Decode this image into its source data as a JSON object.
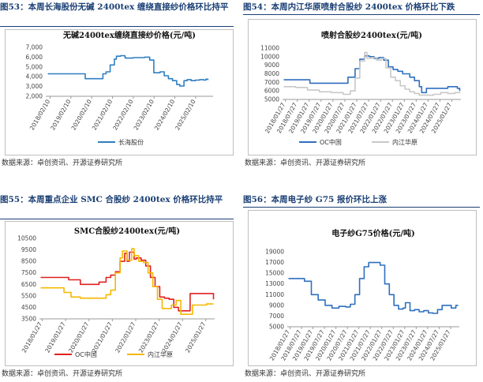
{
  "panels": [
    {
      "figure_title": "图53：本周长海股份无碱 2400tex 缠绕直接纱价格环比持平",
      "source": "数据来源：卓创资讯、开源证券研究所",
      "chart_data": {
        "type": "line",
        "title": "无碱2400tex缠绕直接纱价格(元/吨)",
        "ylim": [
          2000,
          7000
        ],
        "yticks": [
          2000,
          3000,
          4000,
          5000,
          6000,
          7000
        ],
        "ytick_labels": [
          "2,000",
          "3,000",
          "4,000",
          "5,000",
          "6,000",
          "7,000"
        ],
        "xlim": [
          2017.9,
          2025.95
        ],
        "xticks": [
          2018.11,
          2019.11,
          2020.11,
          2021.11,
          2022.11,
          2023.11,
          2024.11,
          2025.11
        ],
        "xtick_labels": [
          "2018/02/10",
          "2019/02/10",
          "2020/02/10",
          "2021/02/10",
          "2022/02/10",
          "2023/02/10",
          "2024/02/10",
          "2025/02/10"
        ],
        "legend_position": "bottom",
        "series": [
          {
            "name": "长海股份",
            "color": "#2f7fc1",
            "x": [
              2018.0,
              2019.0,
              2019.75,
              2019.8,
              2020.3,
              2020.6,
              2020.65,
              2020.8,
              2021.0,
              2021.2,
              2021.3,
              2021.5,
              2021.7,
              2021.72,
              2022.1,
              2022.5,
              2022.65,
              2022.9,
              2023.1,
              2023.4,
              2023.6,
              2023.8,
              2024.0,
              2024.2,
              2024.35,
              2024.5,
              2024.55,
              2024.7,
              2024.9,
              2025.1,
              2025.3,
              2025.5,
              2025.6,
              2025.7
            ],
            "y": [
              4300,
              4300,
              4300,
              3800,
              3800,
              3800,
              4300,
              4500,
              5200,
              5800,
              6100,
              6150,
              6100,
              5900,
              5950,
              5950,
              6000,
              5700,
              4400,
              4500,
              4100,
              3800,
              3600,
              3200,
              3050,
              3050,
              3600,
              3700,
              3600,
              3650,
              3700,
              3650,
              3750,
              3650
            ]
          }
        ]
      }
    },
    {
      "figure_title": "图54：本周内江华原喷射合股纱 2400tex 价格环比下跌",
      "source": "数据来源：卓创资讯、开源证券研究所",
      "chart_data": {
        "type": "line",
        "title": "喷射合股纱2400tex(元/吨)",
        "ylim": [
          5000,
          11000
        ],
        "yticks": [
          5000,
          6000,
          7000,
          8000,
          9000,
          10000,
          11000
        ],
        "ytick_labels": [
          "5000",
          "6000",
          "7000",
          "8000",
          "9000",
          "10000",
          "11000"
        ],
        "xlim": [
          2017.95,
          2025.45
        ],
        "xticks": [
          2018.07,
          2018.57,
          2019.07,
          2019.57,
          2020.07,
          2020.57,
          2021.07,
          2021.57,
          2022.07,
          2022.57,
          2023.07,
          2023.57,
          2024.07,
          2024.57,
          2025.07
        ],
        "xtick_labels": [
          "2018/01/27",
          "2018/07/27",
          "2019/01/27",
          "2019/07/27",
          "2020/01/27",
          "2020/07/27",
          "2021/01/27",
          "2021/07/27",
          "2022/01/27",
          "2022/07/27",
          "2023/01/27",
          "2023/07/27",
          "2024/01/27",
          "2024/07/27",
          "2025/01/27"
        ],
        "legend_position": "bottom",
        "series": [
          {
            "name": "OC中国",
            "color": "#2f6fbf",
            "x": [
              2018.0,
              2019.0,
              2019.1,
              2020.5,
              2020.7,
              2021.0,
              2021.2,
              2021.4,
              2021.6,
              2021.8,
              2022.0,
              2022.2,
              2022.4,
              2022.6,
              2022.8,
              2023.0,
              2023.3,
              2023.5,
              2023.7,
              2023.8,
              2024.0,
              2024.3,
              2024.6,
              2024.9,
              2025.2,
              2025.3,
              2025.4
            ],
            "y": [
              7300,
              7300,
              6900,
              6900,
              7600,
              8600,
              9700,
              10100,
              10000,
              9800,
              9900,
              9600,
              8800,
              8500,
              8300,
              8000,
              7600,
              7200,
              6500,
              5800,
              6300,
              6300,
              6300,
              6500,
              6500,
              6300,
              6000
            ]
          },
          {
            "name": "内江华原",
            "color": "#c8c8c8",
            "x": [
              2018.0,
              2018.5,
              2019.0,
              2019.5,
              2020.0,
              2020.5,
              2020.8,
              2021.0,
              2021.2,
              2021.4,
              2021.5,
              2021.7,
              2021.9,
              2022.1,
              2022.3,
              2022.5,
              2022.7,
              2022.9,
              2023.1,
              2023.3,
              2023.5,
              2023.7,
              2024.0,
              2024.3,
              2024.6,
              2024.9,
              2025.2,
              2025.4
            ],
            "y": [
              6500,
              6400,
              6100,
              5900,
              5800,
              5600,
              6000,
              7500,
              9500,
              10500,
              9800,
              9900,
              9600,
              9800,
              8700,
              7600,
              7200,
              6600,
              6200,
              5900,
              5700,
              5500,
              5500,
              5600,
              5800,
              5700,
              5800,
              5900
            ]
          }
        ]
      }
    },
    {
      "figure_title": "图55：本周重点企业 SMC 合股纱 2400tex 价格环比持平",
      "source": "数据来源：卓创资讯、开源证券研究所",
      "chart_data": {
        "type": "line",
        "title": "SMC合股纱2400tex(元/吨)",
        "ylim": [
          3500,
          10500
        ],
        "yticks": [
          3500,
          4500,
          5500,
          6500,
          7500,
          8500,
          9500,
          10500
        ],
        "ytick_labels": [
          "3500",
          "4500",
          "5500",
          "6500",
          "7500",
          "8500",
          "9500",
          "10500"
        ],
        "xlim": [
          2017.95,
          2025.45
        ],
        "xticks": [
          2018.07,
          2019.07,
          2020.07,
          2021.07,
          2022.07,
          2023.07,
          2024.07,
          2025.07
        ],
        "xtick_labels": [
          "2018/01/27",
          "2019/01/27",
          "2020/01/27",
          "2021/01/27",
          "2022/01/27",
          "2023/01/27",
          "2024/01/27",
          "2025/01/27"
        ],
        "legend_position": "bottom",
        "series": [
          {
            "name": "OC中国",
            "color": "#e02020",
            "x": [
              2018.0,
              2019.0,
              2019.2,
              2019.7,
              2020.0,
              2020.5,
              2020.8,
              2021.0,
              2021.2,
              2021.4,
              2021.6,
              2021.7,
              2021.8,
              2022.0,
              2022.1,
              2022.3,
              2022.5,
              2022.7,
              2022.9,
              2023.1,
              2023.3,
              2023.5,
              2023.7,
              2023.9,
              2024.0,
              2024.3,
              2024.4,
              2024.6,
              2024.8,
              2025.0,
              2025.2,
              2025.4
            ],
            "y": [
              7100,
              7100,
              6900,
              6500,
              6500,
              6700,
              7100,
              7300,
              7600,
              8500,
              9200,
              8500,
              9300,
              8700,
              8800,
              8600,
              8100,
              7100,
              6300,
              5400,
              5300,
              5200,
              4500,
              4200,
              4200,
              4200,
              5700,
              5700,
              5700,
              5700,
              5700,
              5200
            ]
          },
          {
            "name": "内江华原",
            "color": "#f5b800",
            "x": [
              2018.0,
              2018.5,
              2019.0,
              2019.3,
              2019.7,
              2020.0,
              2020.5,
              2020.8,
              2021.0,
              2021.2,
              2021.4,
              2021.5,
              2021.7,
              2021.9,
              2022.0,
              2022.2,
              2022.4,
              2022.6,
              2022.8,
              2023.0,
              2023.2,
              2023.4,
              2023.6,
              2023.8,
              2024.0,
              2024.2,
              2024.5,
              2024.8,
              2025.1,
              2025.4
            ],
            "y": [
              6200,
              6200,
              5800,
              5400,
              5300,
              5300,
              5300,
              5600,
              6000,
              7500,
              8800,
              9400,
              8600,
              9600,
              9000,
              8500,
              8400,
              7500,
              6300,
              5200,
              4400,
              4400,
              4700,
              5100,
              3900,
              3900,
              4700,
              4700,
              4800,
              4800
            ]
          }
        ]
      }
    },
    {
      "figure_title": "图56：本周电子纱 G75 报价环比上涨",
      "source": "数据来源：卓创资讯、开源证券研究所",
      "chart_data": {
        "type": "line",
        "title": "电子纱G75价格(元/吨)",
        "ylim": [
          5000,
          19000
        ],
        "yticks": [
          5000,
          7000,
          9000,
          11000,
          13000,
          15000,
          17000,
          19000
        ],
        "ytick_labels": [
          "5000",
          "7000",
          "9000",
          "11000",
          "13000",
          "15000",
          "17000",
          "19000"
        ],
        "xlim": [
          2017.95,
          2025.45
        ],
        "xticks": [
          2018.07,
          2018.57,
          2019.07,
          2019.57,
          2020.07,
          2020.57,
          2021.07,
          2021.57,
          2022.07,
          2022.57,
          2023.07,
          2023.57,
          2024.07,
          2024.57,
          2025.07
        ],
        "xtick_labels": [
          "2018/01/27",
          "2018/07/27",
          "2019/01/27",
          "2019/07/27",
          "2020/01/27",
          "2020/07/27",
          "2021/01/27",
          "2021/07/27",
          "2022/01/27",
          "2022/07/27",
          "2023/01/27",
          "2023/07/27",
          "2024/01/27",
          "2024/07/27",
          "2025/01/27"
        ],
        "legend_position": "none",
        "series": [
          {
            "name": "",
            "color": "#2f6fbf",
            "x": [
              2018.0,
              2018.5,
              2018.7,
              2019.0,
              2019.3,
              2019.6,
              2019.9,
              2020.2,
              2020.5,
              2020.7,
              2020.9,
              2021.1,
              2021.3,
              2021.5,
              2021.6,
              2021.8,
              2022.0,
              2022.2,
              2022.4,
              2022.6,
              2022.8,
              2023.0,
              2023.1,
              2023.3,
              2023.5,
              2023.7,
              2023.9,
              2024.1,
              2024.3,
              2024.5,
              2024.7,
              2024.9,
              2025.1,
              2025.3,
              2025.4
            ],
            "y": [
              14000,
              14000,
              13500,
              11000,
              10000,
              9000,
              8500,
              8800,
              8700,
              9200,
              11000,
              14000,
              16200,
              17000,
              17000,
              17000,
              16500,
              13000,
              11000,
              9000,
              8300,
              8500,
              9500,
              8000,
              8200,
              7800,
              8000,
              7600,
              7500,
              8200,
              9000,
              9000,
              8500,
              9000,
              9000
            ]
          }
        ]
      }
    }
  ]
}
